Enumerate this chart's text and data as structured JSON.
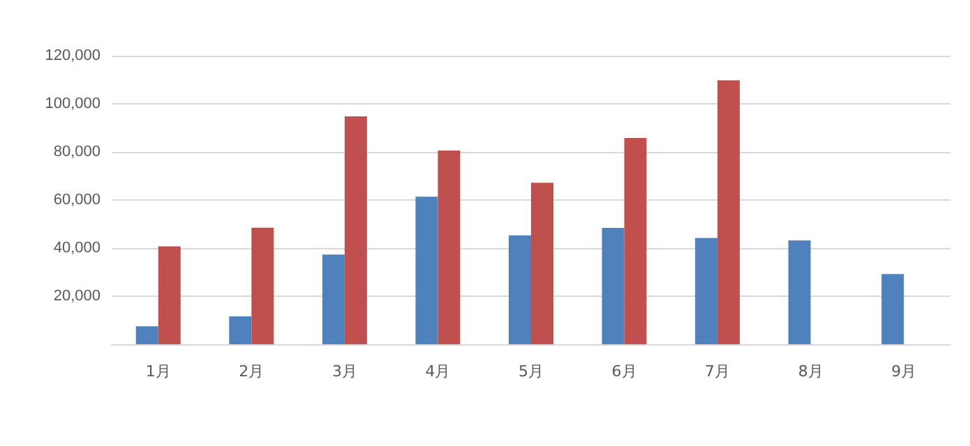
{
  "chart_data": {
    "type": "bar",
    "categories": [
      "1月",
      "2月",
      "3月",
      "4月",
      "5月",
      "6月",
      "7月",
      "8月",
      "9月"
    ],
    "series": [
      {
        "color": "#4f81bd",
        "values": [
          7500,
          11600,
          37300,
          61400,
          45300,
          48400,
          44200,
          43200,
          29200
        ]
      },
      {
        "color": "#c0504d",
        "values": [
          40700,
          48500,
          94800,
          80600,
          67200,
          85800,
          109800,
          null,
          null
        ]
      }
    ],
    "ylim": [
      0,
      120000
    ],
    "yticks": [
      {
        "value": 0,
        "label": null
      },
      {
        "value": 20000,
        "label": "20,000"
      },
      {
        "value": 40000,
        "label": "40,000"
      },
      {
        "value": 60000,
        "label": "60,000"
      },
      {
        "value": 80000,
        "label": "80,000"
      },
      {
        "value": 100000,
        "label": "100,000"
      },
      {
        "value": 120000,
        "label": "120,000"
      }
    ],
    "grid": "y"
  }
}
